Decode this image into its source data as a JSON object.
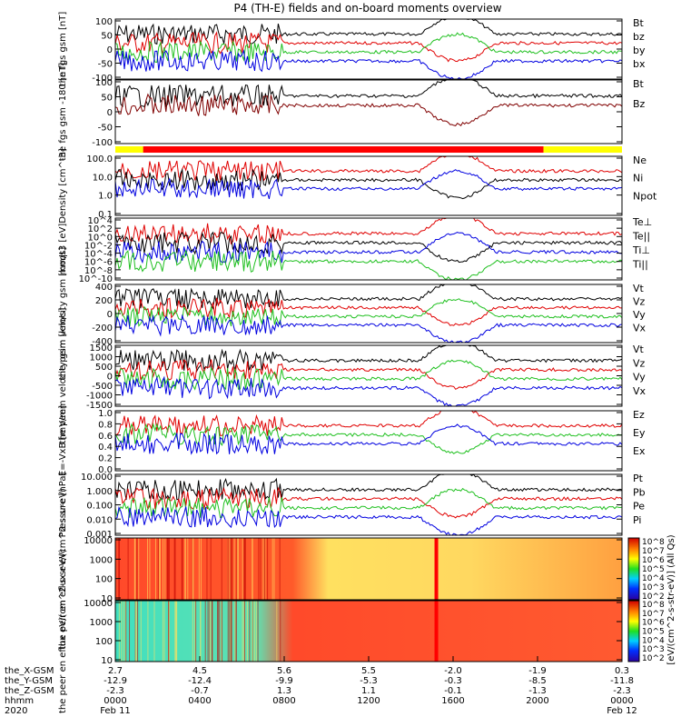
{
  "chart_data": {
    "type": "line",
    "title": "P4 (TH-E) fields and on-board moments overview",
    "x_axis": {
      "rows": [
        {
          "label": "the_X-GSM",
          "values": [
            "2.7",
            "4.5",
            "5.6",
            "5.5",
            "-2.0",
            "-1.9",
            "0.3"
          ]
        },
        {
          "label": "the_Y-GSM",
          "values": [
            "-12.9",
            "-12.4",
            "-9.9",
            "-5.3",
            "-0.3",
            "-8.5",
            "-11.8"
          ]
        },
        {
          "label": "the_Z-GSM",
          "values": [
            "-2.3",
            "-0.7",
            "1.3",
            "1.1",
            "-0.1",
            "-1.3",
            "-2.3"
          ]
        },
        {
          "label": "hhmm",
          "values": [
            "0000",
            "0400",
            "0800",
            "1200",
            "1600",
            "2000",
            "0000"
          ]
        }
      ],
      "year": "2020",
      "start_date": "Feb 11",
      "end_date": "Feb 12"
    },
    "colorbar_label": "[eV/(cm^2-s-str-eV)] (All Qs)",
    "colorbar_ticks": [
      "10^8",
      "10^7",
      "10^6",
      "10^5",
      "10^4",
      "10^3",
      "10^2"
    ],
    "panels": [
      {
        "ylabel": "the fgs gsm [nT]",
        "yticks": [
          "100",
          "50",
          "0",
          "-50",
          "-100"
        ],
        "legend": [
          "Bt",
          "bz",
          "by",
          "bx"
        ]
      },
      {
        "ylabel": "the fgs gsm -180 [nT]",
        "yticks": [
          "100",
          "50",
          "0",
          "-50",
          "-100"
        ],
        "legend": [
          "Bt",
          "Bz"
        ]
      },
      {
        "ylabel": "Density [cm^-3]",
        "yticks": [
          "100.0",
          "10.0",
          "1.0",
          "0.1"
        ],
        "legend": [
          "Ne",
          "Ni",
          "Npot"
        ]
      },
      {
        "ylabel": "moqt3 [eV]",
        "yticks": [
          "10^4",
          "10^2",
          "10^0",
          "10^-2",
          "10^-4",
          "10^-6",
          "10^-8",
          "10^-10"
        ],
        "legend": [
          "Te⊥",
          "Te||",
          "Ti⊥",
          "Ti||"
        ]
      },
      {
        "ylabel": "the peim velocity gsm [km/s]",
        "yticks": [
          "400",
          "200",
          "0",
          "-200",
          "-400"
        ],
        "legend": [
          "Vt",
          "Vz",
          "Vy",
          "Vx"
        ]
      },
      {
        "ylabel": "the peem velocity gsm [km/s]",
        "yticks": [
          "1500",
          "1000",
          "500",
          "0",
          "-500",
          "-1000",
          "-1500"
        ],
        "legend": [
          "Vt",
          "Vz",
          "Vy",
          "Vx"
        ]
      },
      {
        "ylabel": "E=-VxB [mV/m]",
        "yticks": [
          "1.0",
          "0.8",
          "0.6",
          "0.4",
          "0.2",
          "0.0"
        ],
        "legend": [
          "Ez",
          "Ey",
          "Ex"
        ]
      },
      {
        "ylabel": "Pressure [nPa]",
        "yticks": [
          "10.000",
          "1.000",
          "0.100",
          "0.010",
          "0.001"
        ],
        "legend": [
          "Pt",
          "Pb",
          "Pe",
          "Pi"
        ]
      },
      {
        "ylabel": "the peir en eflux eV/(cm^2-s-sr-eV)",
        "yticks": [
          "10000",
          "1000",
          "100",
          "10"
        ],
        "legend": []
      },
      {
        "ylabel": "the peer en eflux eV/(cm^2-s-sr-eV)",
        "yticks": [
          "10000",
          "1000",
          "100",
          "10"
        ],
        "legend": []
      }
    ]
  }
}
